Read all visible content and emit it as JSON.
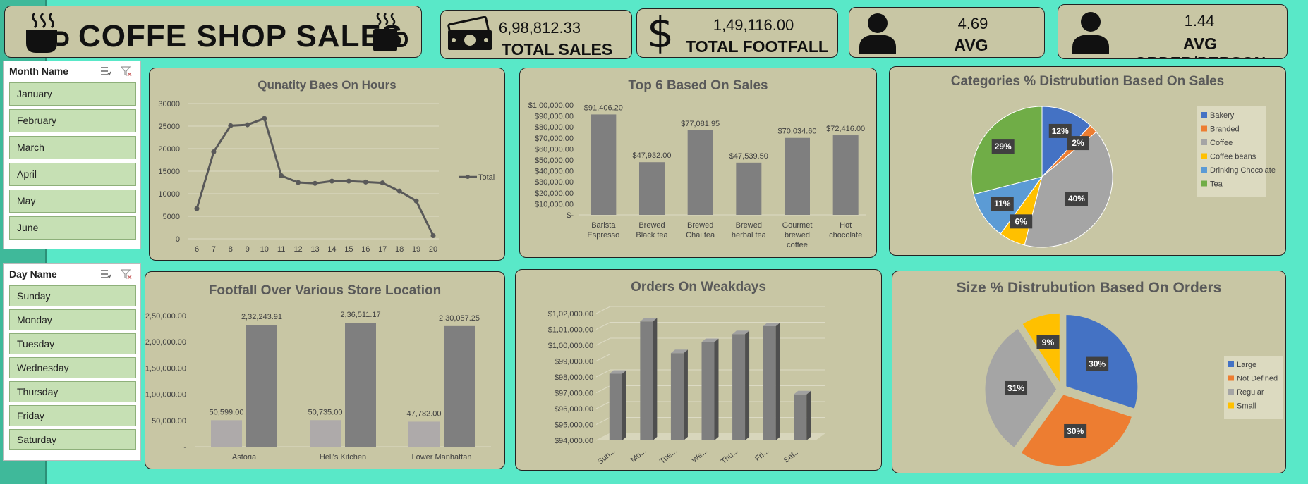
{
  "header": {
    "title": "COFFE SHOP SALES"
  },
  "kpis": [
    {
      "value": "6,98,812.33",
      "label": "TOTAL SALES",
      "icon": "cash-icon"
    },
    {
      "value": "1,49,116.00",
      "label": "TOTAL FOOTFALL",
      "icon": "dollar-icon"
    },
    {
      "value": "4.69",
      "label": "AVG BILL/PERSON",
      "icon": "person-icon"
    },
    {
      "value": "1.44",
      "label": "AVG ORDER/PERSON",
      "icon": "person-icon"
    }
  ],
  "slicers": {
    "month": {
      "header": "Month Name",
      "items": [
        "January",
        "February",
        "March",
        "April",
        "May",
        "June"
      ]
    },
    "day": {
      "header": "Day Name",
      "items": [
        "Sunday",
        "Monday",
        "Tuesday",
        "Wednesday",
        "Thursday",
        "Friday",
        "Saturday"
      ]
    }
  },
  "chart_data": [
    {
      "type": "line",
      "title": "Qunatity Baes On Hours",
      "x": [
        "6",
        "7",
        "8",
        "9",
        "10",
        "11",
        "12",
        "13",
        "14",
        "15",
        "16",
        "17",
        "18",
        "19",
        "20"
      ],
      "series": [
        {
          "name": "Total",
          "values": [
            6700,
            19300,
            25100,
            25300,
            26700,
            14000,
            12500,
            12300,
            12800,
            12800,
            12600,
            12400,
            10600,
            8400,
            700
          ]
        }
      ],
      "ylim": [
        0,
        30000
      ],
      "yticks": [
        "0",
        "5000",
        "10000",
        "15000",
        "20000",
        "25000",
        "30000"
      ],
      "legend": "right",
      "grid": true
    },
    {
      "type": "bar",
      "title": "Top 6 Based On Sales",
      "categories": [
        "Barista Espresso",
        "Brewed Black tea",
        "Brewed Chai tea",
        "Brewed herbal tea",
        "Gourmet brewed coffee",
        "Hot chocolate"
      ],
      "values": [
        91406.2,
        47932.0,
        77081.95,
        47539.5,
        70034.6,
        72416.0
      ],
      "data_labels": [
        "$91,406.20",
        "$47,932.00",
        "$77,081.95",
        "$47,539.50",
        "$70,034.60",
        "$72,416.00"
      ],
      "ylim": [
        0,
        100000
      ],
      "yticks": [
        "$-",
        "$10,000.00",
        "$20,000.00",
        "$30,000.00",
        "$40,000.00",
        "$50,000.00",
        "$60,000.00",
        "$70,000.00",
        "$80,000.00",
        "$90,000.00",
        "$1,00,000.00"
      ]
    },
    {
      "type": "pie",
      "title": "Categories % Distrubution Based On Sales",
      "labels": [
        "Bakery",
        "Branded",
        "Coffee",
        "Coffee beans",
        "Drinking Chocolate",
        "Tea"
      ],
      "values": [
        12,
        2,
        40,
        6,
        11,
        29
      ],
      "data_labels": [
        "12%",
        "2%",
        "40%",
        "6%",
        "11%",
        "29%"
      ],
      "colors": [
        "#4472c4",
        "#ed7d31",
        "#a5a5a5",
        "#ffc000",
        "#5b9bd5",
        "#70ad47"
      ],
      "legend": "right"
    },
    {
      "type": "bar",
      "title": "Footfall Over Various Store Location",
      "categories": [
        "Astoria",
        "Hell's Kitchen",
        "Lower Manhattan"
      ],
      "series": [
        {
          "values": [
            50599.0,
            50735.0,
            47782.0
          ],
          "data_labels": [
            "50,599.00",
            "50,735.00",
            "47,782.00"
          ]
        },
        {
          "values": [
            232243.91,
            236511.17,
            230057.25
          ],
          "data_labels": [
            "2,32,243.91",
            "2,36,511.17",
            "2,30,057.25"
          ]
        }
      ],
      "ylim": [
        0,
        250000
      ],
      "yticks": [
        "-",
        "50,000.00",
        "1,00,000.00",
        "1,50,000.00",
        "2,00,000.00",
        "2,50,000.00"
      ],
      "colors": [
        "#aeaaaa",
        "#7f7f7f"
      ]
    },
    {
      "type": "bar",
      "title": "Orders On Weakdays",
      "categories": [
        "Sun...",
        "Mo...",
        "Tue...",
        "We...",
        "Thu...",
        "Fri...",
        "Sat..."
      ],
      "values": [
        98200,
        101500,
        99500,
        100200,
        100700,
        101200,
        96900
      ],
      "ylim": [
        94000,
        102000
      ],
      "yticks": [
        "$94,000.00",
        "$95,000.00",
        "$96,000.00",
        "$97,000.00",
        "$98,000.00",
        "$99,000.00",
        "$1,00,000.00",
        "$1,01,000.00",
        "$1,02,000.00"
      ]
    },
    {
      "type": "pie",
      "title": "Size % Distrubution Based On Orders",
      "labels": [
        "Large",
        "Not Defined",
        "Regular",
        "Small"
      ],
      "values": [
        30,
        30,
        31,
        9
      ],
      "data_labels": [
        "30%",
        "30%",
        "31%",
        "9%"
      ],
      "colors": [
        "#4472c4",
        "#ed7d31",
        "#a5a5a5",
        "#ffc000"
      ],
      "legend": "right"
    }
  ]
}
